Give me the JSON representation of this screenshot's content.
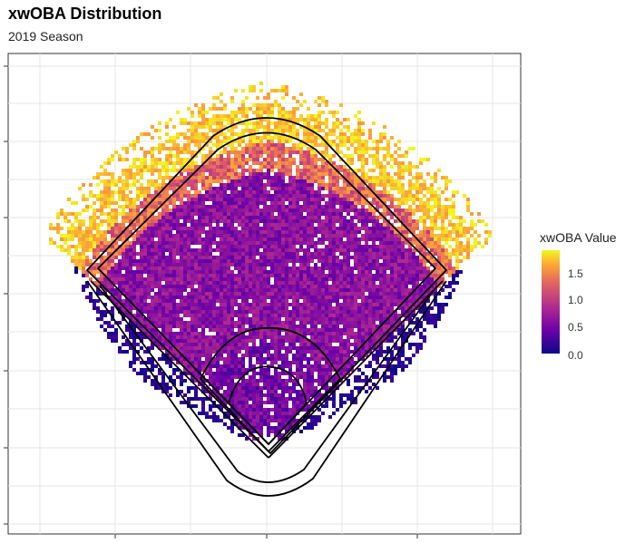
{
  "title": "xwOBA Distribution",
  "subtitle": "2019 Season",
  "legend": {
    "title": "xwOBA Value",
    "ticks": [
      "1.5",
      "1.0",
      "0.5",
      "0.0"
    ],
    "colors": [
      "#0d0887",
      "#6a00a8",
      "#b12a90",
      "#e16462",
      "#fca636",
      "#f0f921"
    ]
  },
  "chart_data": {
    "type": "heatmap",
    "title": "xwOBA Distribution",
    "subtitle": "2019 Season",
    "colorbar": {
      "label": "xwOBA Value",
      "range": [
        0,
        1.9
      ],
      "ticks": [
        0.0,
        0.5,
        1.0,
        1.5
      ]
    },
    "grid": true,
    "legend_position": "right",
    "overlay": "baseball field outline (diamond, infield arc, outfield wall)",
    "zones": [
      {
        "name": "deep outfield",
        "xwoba": 1.6
      },
      {
        "name": "outfield",
        "xwoba": 0.4
      },
      {
        "name": "infield",
        "xwoba": 0.3
      },
      {
        "name": "foul territory",
        "xwoba": 0.05
      }
    ]
  }
}
